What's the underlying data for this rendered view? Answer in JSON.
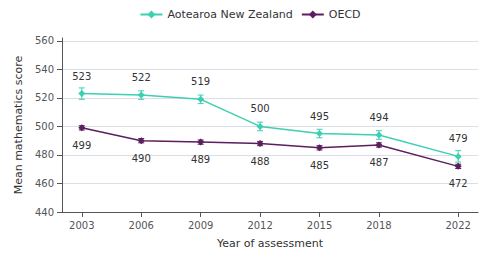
{
  "chart_data": {
    "type": "line",
    "x": [
      2003,
      2006,
      2009,
      2012,
      2015,
      2018,
      2022
    ],
    "series": [
      {
        "name": "Aotearoa New Zealand",
        "color": "#3ecfb2",
        "marker": "diamond",
        "values": [
          523,
          522,
          519,
          500,
          495,
          494,
          479
        ],
        "errors": [
          4,
          3,
          3,
          3,
          3,
          3,
          4
        ]
      },
      {
        "name": "OECD",
        "color": "#5b1e5e",
        "marker": "diamond",
        "values": [
          499,
          490,
          489,
          488,
          485,
          487,
          472
        ],
        "errors": [
          1.5,
          1.5,
          1.5,
          1.5,
          1.5,
          1.5,
          1.5
        ]
      }
    ],
    "xlabel": "Year of assessment",
    "ylabel": "Mean mathematics score",
    "xlim": [
      2002,
      2023
    ],
    "xticks": [
      2003,
      2006,
      2009,
      2012,
      2015,
      2018,
      2022
    ],
    "ylim": [
      440,
      562
    ],
    "yticks": [
      440,
      460,
      480,
      500,
      520,
      540,
      560
    ],
    "grid": true,
    "legend": "top",
    "data_labels": true
  }
}
